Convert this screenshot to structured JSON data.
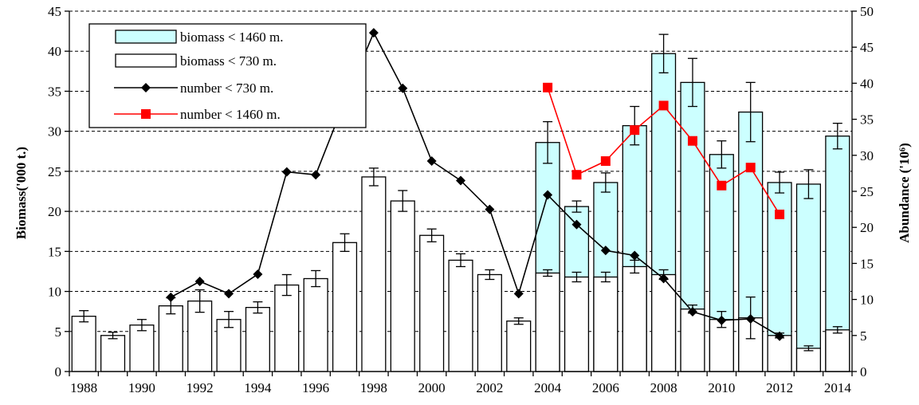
{
  "chart_data": {
    "type": "bar",
    "x": [
      1988,
      1989,
      1990,
      1991,
      1992,
      1993,
      1994,
      1995,
      1996,
      1997,
      1998,
      1999,
      2000,
      2001,
      2002,
      2003,
      2004,
      2005,
      2006,
      2007,
      2008,
      2009,
      2010,
      2011,
      2012,
      2013,
      2014
    ],
    "x_tick_labels": [
      "1988",
      "1990",
      "1992",
      "1994",
      "1996",
      "1998",
      "2000",
      "2002",
      "2004",
      "2006",
      "2008",
      "2010",
      "2012",
      "2014"
    ],
    "ylabel": "Biomass('000 t.)",
    "y2label": "Abundance ('10⁶)",
    "ylim": [
      0,
      45
    ],
    "y2lim": [
      0,
      50
    ],
    "y_ticks": [
      0,
      5,
      10,
      15,
      20,
      25,
      30,
      35,
      40,
      45
    ],
    "y2_ticks": [
      0,
      5,
      10,
      15,
      20,
      25,
      30,
      35,
      40,
      45,
      50
    ],
    "grid": "horizontal dashed",
    "legend_position": "top-left",
    "series": [
      {
        "name": "biomass < 1460 m.",
        "kind": "bar",
        "axis": "left",
        "color": "#ccffff",
        "x": [
          2004,
          2005,
          2006,
          2007,
          2008,
          2009,
          2010,
          2011,
          2012,
          2013,
          2014
        ],
        "values": [
          28.6,
          20.6,
          23.6,
          30.7,
          39.7,
          36.1,
          27.1,
          32.4,
          23.6,
          23.4,
          29.4
        ],
        "error": [
          2.6,
          0.7,
          1.2,
          2.4,
          2.4,
          3.0,
          1.7,
          3.7,
          1.3,
          1.8,
          1.6
        ]
      },
      {
        "name": "biomass < 730 m.",
        "kind": "bar",
        "axis": "left",
        "color": "#ffffff",
        "x": [
          1988,
          1989,
          1990,
          1991,
          1992,
          1993,
          1994,
          1995,
          1996,
          1997,
          1998,
          1999,
          2000,
          2001,
          2002,
          2003,
          2004,
          2005,
          2006,
          2007,
          2008,
          2009,
          2010,
          2011,
          2012,
          2013,
          2014
        ],
        "values": [
          6.9,
          4.5,
          5.8,
          8.2,
          8.8,
          6.5,
          8.0,
          10.8,
          11.6,
          16.1,
          24.3,
          21.3,
          17.0,
          13.9,
          12.1,
          6.3,
          12.3,
          11.8,
          11.8,
          13.1,
          12.1,
          7.8,
          6.5,
          6.7,
          4.5,
          2.9,
          5.2
        ],
        "error": [
          0.7,
          0.4,
          0.7,
          1.0,
          1.4,
          1.0,
          0.7,
          1.3,
          1.0,
          1.1,
          1.1,
          1.3,
          0.8,
          0.8,
          0.6,
          0.4,
          0.4,
          0.6,
          0.6,
          0.8,
          0.6,
          0.5,
          1.0,
          2.6,
          0.3,
          0.3,
          0.4
        ]
      },
      {
        "name": "number < 730 m.",
        "kind": "line",
        "axis": "right",
        "color": "#000000",
        "marker": "diamond",
        "x": [
          1991,
          1992,
          1993,
          1994,
          1995,
          1996,
          1997,
          1998,
          1999,
          2000,
          2001,
          2002,
          2003,
          2004,
          2005,
          2006,
          2007,
          2008,
          2009,
          2010,
          2011,
          2012
        ],
        "values": [
          10.3,
          12.5,
          10.8,
          13.5,
          27.7,
          27.3,
          37.5,
          47.0,
          39.3,
          29.2,
          26.5,
          22.5,
          10.8,
          24.5,
          20.4,
          16.8,
          16.1,
          12.9,
          8.3,
          7.1,
          7.3,
          4.9
        ]
      },
      {
        "name": "number < 1460 m.",
        "kind": "line",
        "axis": "right",
        "color": "#ff0000",
        "marker": "square",
        "x": [
          2004,
          2005,
          2006,
          2007,
          2008,
          2009,
          2010,
          2011,
          2012
        ],
        "values": [
          39.4,
          27.3,
          29.2,
          33.5,
          36.9,
          32.0,
          25.8,
          28.3,
          21.8
        ]
      }
    ]
  }
}
